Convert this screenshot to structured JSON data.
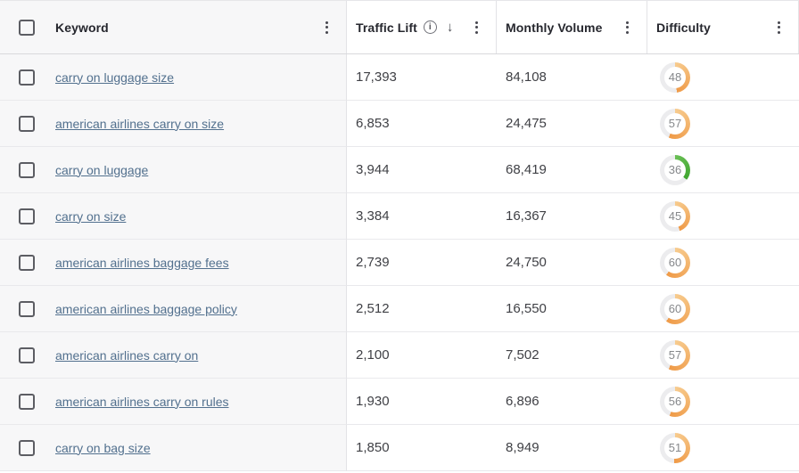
{
  "header": {
    "keyword": "Keyword",
    "traffic_lift": "Traffic Lift",
    "monthly_volume": "Monthly Volume",
    "difficulty": "Difficulty",
    "sort_column": "Traffic Lift",
    "sort_direction": "descending",
    "sort_arrow_glyph": "↓",
    "info_glyph": "i"
  },
  "rows": [
    {
      "keyword": "carry on luggage size",
      "traffic_lift": "17,393",
      "monthly_volume": "84,108",
      "difficulty": 48,
      "difficulty_color": "orange"
    },
    {
      "keyword": "american airlines carry on size",
      "traffic_lift": "6,853",
      "monthly_volume": "24,475",
      "difficulty": 57,
      "difficulty_color": "orange"
    },
    {
      "keyword": "carry on luggage",
      "traffic_lift": "3,944",
      "monthly_volume": "68,419",
      "difficulty": 36,
      "difficulty_color": "green"
    },
    {
      "keyword": "carry on size",
      "traffic_lift": "3,384",
      "monthly_volume": "16,367",
      "difficulty": 45,
      "difficulty_color": "orange"
    },
    {
      "keyword": "american airlines baggage fees",
      "traffic_lift": "2,739",
      "monthly_volume": "24,750",
      "difficulty": 60,
      "difficulty_color": "orange"
    },
    {
      "keyword": "american airlines baggage policy",
      "traffic_lift": "2,512",
      "monthly_volume": "16,550",
      "difficulty": 60,
      "difficulty_color": "orange"
    },
    {
      "keyword": "american airlines carry on",
      "traffic_lift": "2,100",
      "monthly_volume": "7,502",
      "difficulty": 57,
      "difficulty_color": "orange"
    },
    {
      "keyword": "american airlines carry on rules",
      "traffic_lift": "1,930",
      "monthly_volume": "6,896",
      "difficulty": 56,
      "difficulty_color": "orange"
    },
    {
      "keyword": "carry on bag size",
      "traffic_lift": "1,850",
      "monthly_volume": "8,949",
      "difficulty": 51,
      "difficulty_color": "orange"
    }
  ],
  "palette": {
    "orange_start": "#f7cb8e",
    "orange_end": "#ef9a47",
    "green_start": "#6abf55",
    "green_end": "#3fa52f",
    "track": "#ececee",
    "link": "#52708e"
  }
}
